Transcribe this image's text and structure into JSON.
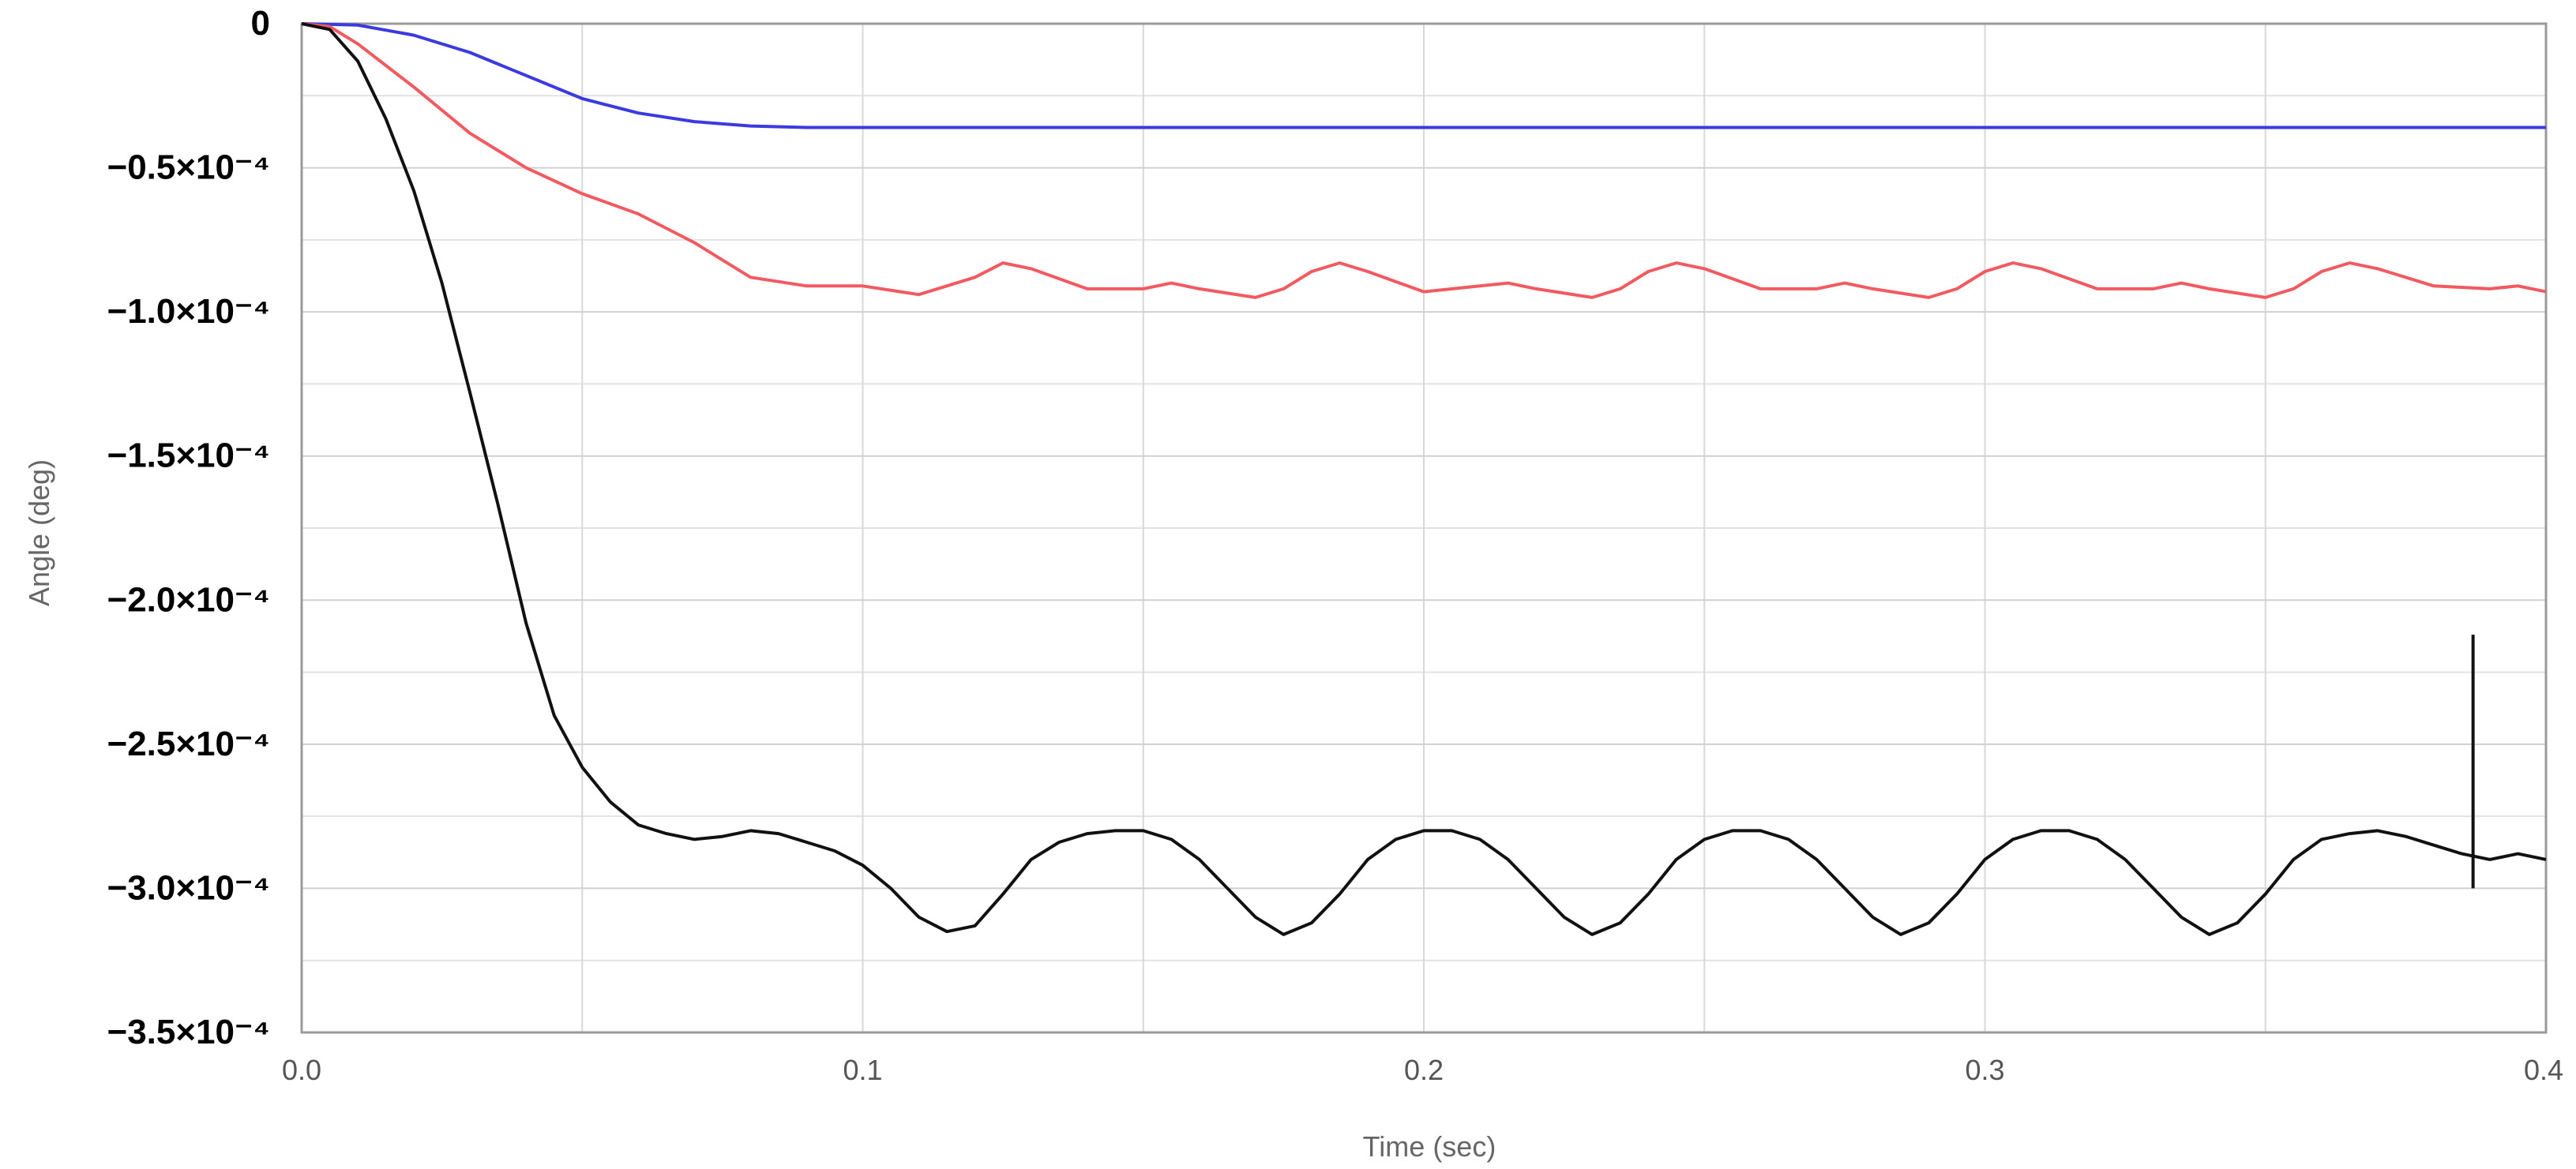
{
  "chart_data": {
    "type": "line",
    "xlabel": "Time (sec)",
    "ylabel": "Angle (deg)",
    "xlim": [
      0.0,
      0.4
    ],
    "ylim": [
      -0.00035,
      0
    ],
    "x_ticks": [
      0.0,
      0.1,
      0.2,
      0.3,
      0.4
    ],
    "x_tick_labels": [
      "0.0",
      "0.1",
      "0.2",
      "0.3",
      "0.4"
    ],
    "y_ticks": [
      0,
      -5e-05,
      -0.0001,
      -0.00015,
      -0.0002,
      -0.00025,
      -0.0003,
      -0.00035
    ],
    "y_tick_labels": [
      "0",
      "−0.5×10⁻⁴",
      "−1.0×10⁻⁴",
      "−1.5×10⁻⁴",
      "−2.0×10⁻⁴",
      "−2.5×10⁻⁴",
      "−3.0×10⁻⁴",
      "−3.5×10⁻⁴"
    ],
    "grid": true,
    "legend": "none",
    "series": [
      {
        "color": "#3a3ae0",
        "x": [
          0.0,
          0.01,
          0.02,
          0.03,
          0.04,
          0.05,
          0.06,
          0.07,
          0.08,
          0.09,
          0.1,
          0.15,
          0.2,
          0.25,
          0.3,
          0.35,
          0.4
        ],
        "y": [
          0,
          -5e-07,
          -4e-06,
          -1e-05,
          -1.8e-05,
          -2.6e-05,
          -3.1e-05,
          -3.4e-05,
          -3.55e-05,
          -3.6e-05,
          -3.6e-05,
          -3.6e-05,
          -3.6e-05,
          -3.6e-05,
          -3.6e-05,
          -3.6e-05,
          -3.6e-05
        ]
      },
      {
        "color": "#f05a60",
        "x": [
          0.0,
          0.005,
          0.01,
          0.02,
          0.03,
          0.04,
          0.05,
          0.06,
          0.07,
          0.08,
          0.09,
          0.1,
          0.11,
          0.12,
          0.125,
          0.13,
          0.14,
          0.15,
          0.155,
          0.16,
          0.17,
          0.175,
          0.18,
          0.185,
          0.19,
          0.2,
          0.21,
          0.215,
          0.22,
          0.23,
          0.235,
          0.24,
          0.245,
          0.25,
          0.26,
          0.27,
          0.275,
          0.28,
          0.29,
          0.295,
          0.3,
          0.305,
          0.31,
          0.32,
          0.33,
          0.335,
          0.34,
          0.35,
          0.355,
          0.36,
          0.365,
          0.37,
          0.38,
          0.39,
          0.395,
          0.4
        ],
        "y": [
          0,
          -1e-06,
          -7e-06,
          -2.2e-05,
          -3.8e-05,
          -5e-05,
          -5.9e-05,
          -6.6e-05,
          -7.6e-05,
          -8.8e-05,
          -9.1e-05,
          -9.1e-05,
          -9.4e-05,
          -8.8e-05,
          -8.3e-05,
          -8.5e-05,
          -9.2e-05,
          -9.2e-05,
          -9e-05,
          -9.2e-05,
          -9.5e-05,
          -9.2e-05,
          -8.6e-05,
          -8.3e-05,
          -8.6e-05,
          -9.3e-05,
          -9.1e-05,
          -9e-05,
          -9.2e-05,
          -9.5e-05,
          -9.2e-05,
          -8.6e-05,
          -8.3e-05,
          -8.5e-05,
          -9.2e-05,
          -9.2e-05,
          -9e-05,
          -9.2e-05,
          -9.5e-05,
          -9.2e-05,
          -8.6e-05,
          -8.3e-05,
          -8.5e-05,
          -9.2e-05,
          -9.2e-05,
          -9e-05,
          -9.2e-05,
          -9.5e-05,
          -9.2e-05,
          -8.6e-05,
          -8.3e-05,
          -8.5e-05,
          -9.1e-05,
          -9.2e-05,
          -9.1e-05,
          -9.3e-05
        ]
      },
      {
        "color": "#111111",
        "x": [
          0.0,
          0.005,
          0.01,
          0.015,
          0.02,
          0.025,
          0.03,
          0.035,
          0.04,
          0.045,
          0.05,
          0.055,
          0.06,
          0.065,
          0.07,
          0.075,
          0.08,
          0.085,
          0.09,
          0.095,
          0.1,
          0.105,
          0.11,
          0.115,
          0.12,
          0.125,
          0.13,
          0.135,
          0.14,
          0.145,
          0.15,
          0.155,
          0.16,
          0.165,
          0.17,
          0.175,
          0.18,
          0.185,
          0.19,
          0.195,
          0.2,
          0.205,
          0.21,
          0.215,
          0.22,
          0.225,
          0.23,
          0.235,
          0.24,
          0.245,
          0.25,
          0.255,
          0.26,
          0.265,
          0.27,
          0.275,
          0.28,
          0.285,
          0.29,
          0.295,
          0.3,
          0.305,
          0.31,
          0.315,
          0.32,
          0.325,
          0.33,
          0.335,
          0.34,
          0.345,
          0.35,
          0.355,
          0.36,
          0.365,
          0.37,
          0.375,
          0.38,
          0.385,
          0.39,
          0.395,
          0.4
        ],
        "y": [
          0,
          -2e-06,
          -1.3e-05,
          -3.3e-05,
          -5.8e-05,
          -9e-05,
          -0.000128,
          -0.000167,
          -0.000208,
          -0.00024,
          -0.000258,
          -0.00027,
          -0.000278,
          -0.000281,
          -0.000283,
          -0.000282,
          -0.00028,
          -0.000281,
          -0.000284,
          -0.000287,
          -0.000292,
          -0.0003,
          -0.00031,
          -0.000315,
          -0.000313,
          -0.000302,
          -0.00029,
          -0.000284,
          -0.000281,
          -0.00028,
          -0.00028,
          -0.000283,
          -0.00029,
          -0.0003,
          -0.00031,
          -0.000316,
          -0.000312,
          -0.000302,
          -0.00029,
          -0.000283,
          -0.00028,
          -0.00028,
          -0.000283,
          -0.00029,
          -0.0003,
          -0.00031,
          -0.000316,
          -0.000312,
          -0.000302,
          -0.00029,
          -0.000283,
          -0.00028,
          -0.00028,
          -0.000283,
          -0.00029,
          -0.0003,
          -0.00031,
          -0.000316,
          -0.000312,
          -0.000302,
          -0.00029,
          -0.000283,
          -0.00028,
          -0.00028,
          -0.000283,
          -0.00029,
          -0.0003,
          -0.00031,
          -0.000316,
          -0.000312,
          -0.000302,
          -0.00029,
          -0.000283,
          -0.000281,
          -0.00028,
          -0.000282,
          -0.000285,
          -0.000288,
          -0.00029,
          -0.000288,
          -0.00029
        ],
        "spike": {
          "x": 0.387,
          "y_top": -0.000212,
          "y_bottom": -0.0003
        }
      }
    ]
  }
}
